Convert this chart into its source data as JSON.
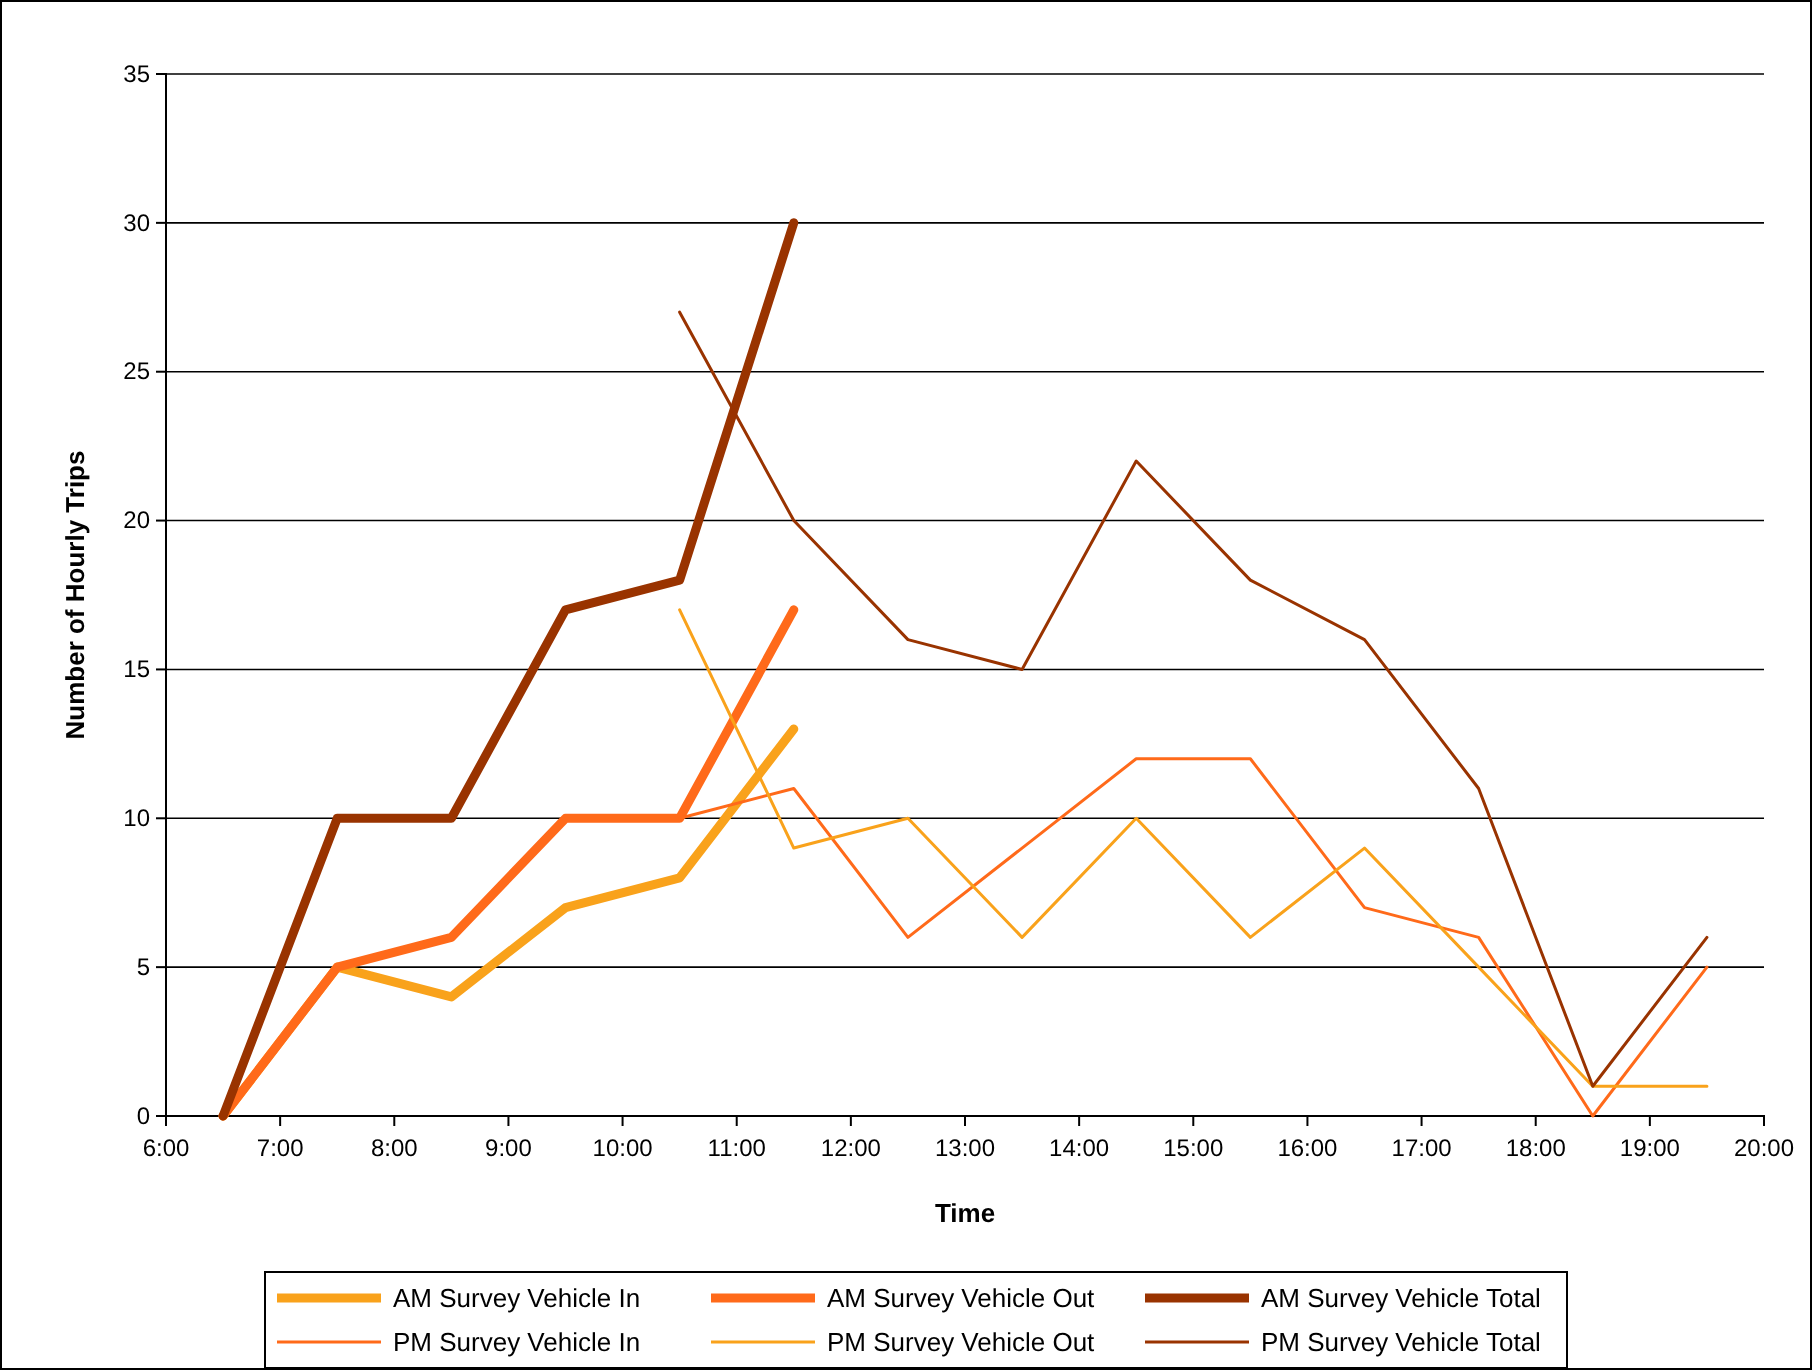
{
  "chart_data": {
    "type": "line",
    "xlabel": "Time",
    "ylabel": "Number of Hourly Trips",
    "xlim": [
      6,
      20
    ],
    "xticks": [
      {
        "value": 6,
        "label": "6:00"
      },
      {
        "value": 7,
        "label": "7:00"
      },
      {
        "value": 8,
        "label": "8:00"
      },
      {
        "value": 9,
        "label": "9:00"
      },
      {
        "value": 10,
        "label": "10:00"
      },
      {
        "value": 11,
        "label": "11:00"
      },
      {
        "value": 12,
        "label": "12:00"
      },
      {
        "value": 13,
        "label": "13:00"
      },
      {
        "value": 14,
        "label": "14:00"
      },
      {
        "value": 15,
        "label": "15:00"
      },
      {
        "value": 16,
        "label": "16:00"
      },
      {
        "value": 17,
        "label": "17:00"
      },
      {
        "value": 18,
        "label": "18:00"
      },
      {
        "value": 19,
        "label": "19:00"
      },
      {
        "value": 20,
        "label": "20:00"
      }
    ],
    "ylim": [
      0,
      35
    ],
    "yticks": [
      0,
      5,
      10,
      15,
      20,
      25,
      30,
      35
    ],
    "grid": "y",
    "legend": "bottom",
    "marker": "none",
    "line_style": "solid",
    "series": [
      {
        "name": "AM Survey Vehicle In",
        "color": "#f9a21b",
        "x": [
          6.5,
          7.5,
          8.5,
          9.5,
          10.5,
          11.5
        ],
        "values": [
          0,
          5,
          4,
          7,
          8,
          13
        ]
      },
      {
        "name": "AM Survey Vehicle Out",
        "color": "#ff6a1a",
        "x": [
          6.5,
          7.5,
          8.5,
          9.5,
          10.5,
          11.5
        ],
        "values": [
          0,
          5,
          6,
          10,
          10,
          17
        ]
      },
      {
        "name": "AM Survey Vehicle Total",
        "color": "#993300",
        "x": [
          6.5,
          7.5,
          8.5,
          9.5,
          10.5,
          11.5
        ],
        "values": [
          0,
          10,
          10,
          17,
          18,
          30
        ]
      },
      {
        "name": "PM Survey Vehicle In",
        "color": "#ff6a1a",
        "x": [
          10.5,
          11.5,
          12.5,
          13.5,
          14.5,
          15.5,
          16.5,
          17.5,
          18.5,
          19.5
        ],
        "values": [
          10,
          11,
          6,
          9,
          12,
          12,
          7,
          6,
          0,
          5
        ]
      },
      {
        "name": "PM Survey Vehicle Out",
        "color": "#f9a21b",
        "x": [
          10.5,
          11.5,
          12.5,
          13.5,
          14.5,
          15.5,
          16.5,
          17.5,
          18.5,
          19.5
        ],
        "values": [
          17,
          9,
          10,
          6,
          10,
          6,
          9,
          5,
          1,
          1
        ]
      },
      {
        "name": "PM Survey Vehicle Total",
        "color": "#993300",
        "x": [
          10.5,
          11.5,
          12.5,
          13.5,
          14.5,
          15.5,
          16.5,
          17.5,
          18.5,
          19.5
        ],
        "values": [
          27,
          20,
          16,
          15,
          22,
          18,
          16,
          11,
          1,
          6
        ]
      }
    ]
  }
}
